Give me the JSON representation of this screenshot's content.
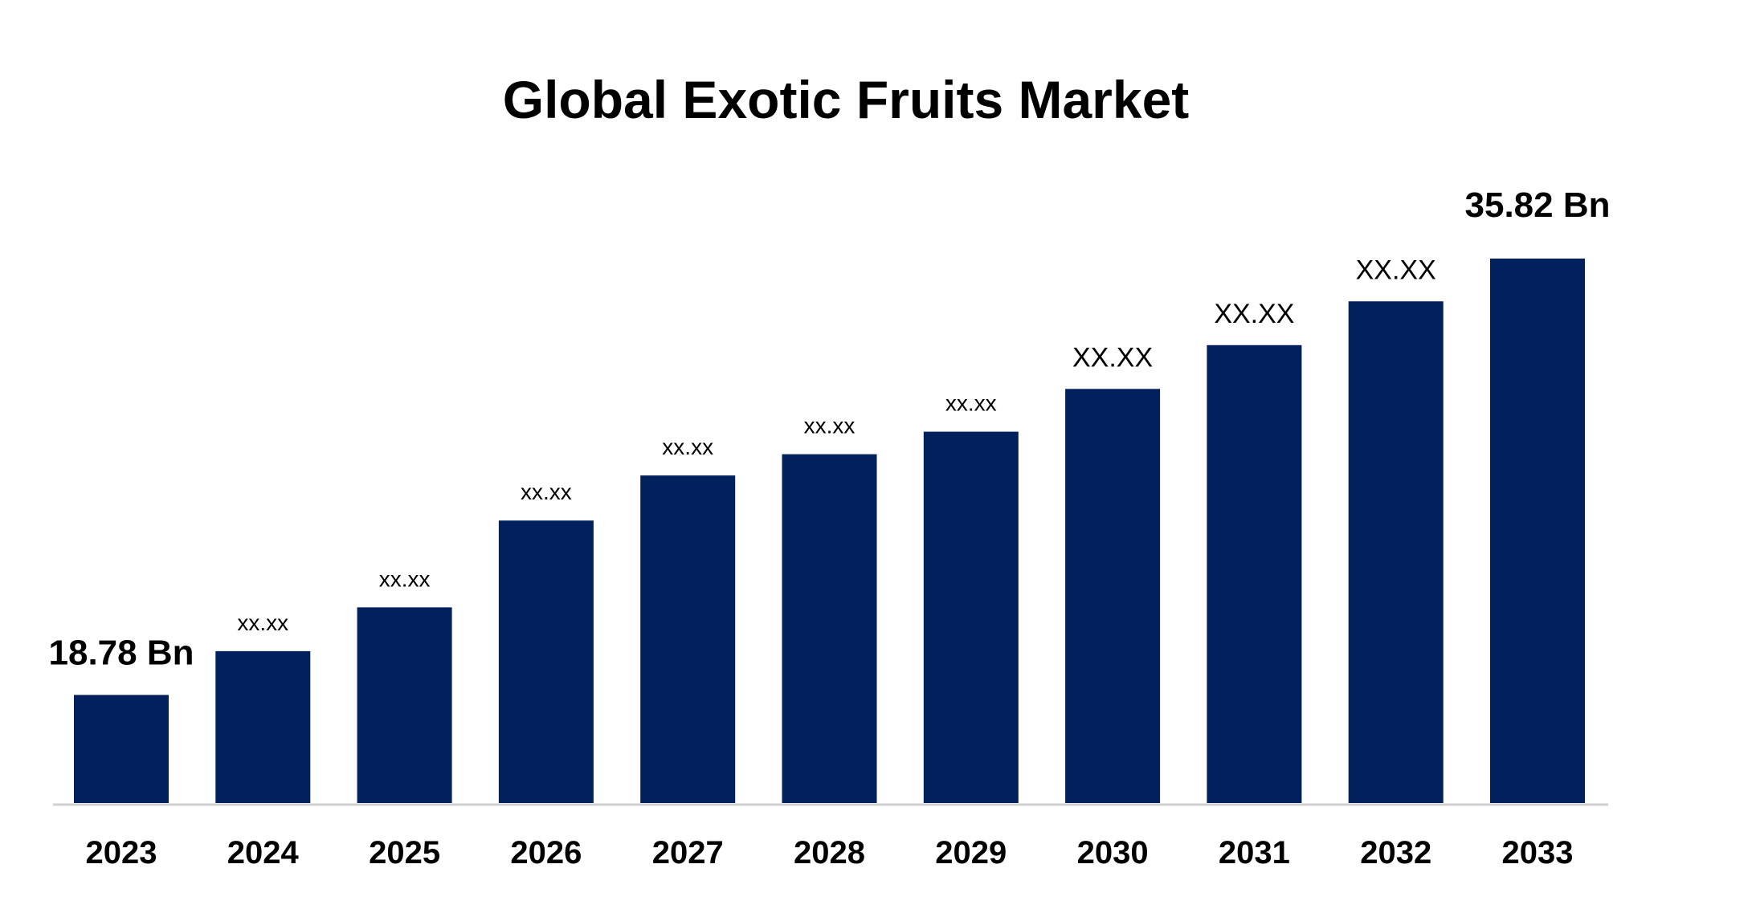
{
  "chart_data": {
    "type": "bar",
    "title": "Global Exotic Fruits Market",
    "xlabel": "",
    "ylabel": "",
    "categories": [
      "2023",
      "2024",
      "2025",
      "2026",
      "2027",
      "2028",
      "2029",
      "2030",
      "2031",
      "2032",
      "2033"
    ],
    "values": [
      18.78,
      20.49,
      22.2,
      25.59,
      27.35,
      28.18,
      29.06,
      30.73,
      32.44,
      34.15,
      35.82
    ],
    "data_labels": [
      "18.78 Bn",
      "xx.xx",
      "xx.xx",
      "xx.xx",
      "xx.xx",
      "xx.xx",
      "xx.xx",
      "XX.XX",
      "XX.XX",
      "XX.XX",
      "35.82 Bn"
    ],
    "ylim": [
      14.56,
      35.82
    ],
    "grid": false,
    "legend": "none",
    "colors": {
      "bar": "#02205e",
      "axis": "#d0d0d0"
    }
  }
}
